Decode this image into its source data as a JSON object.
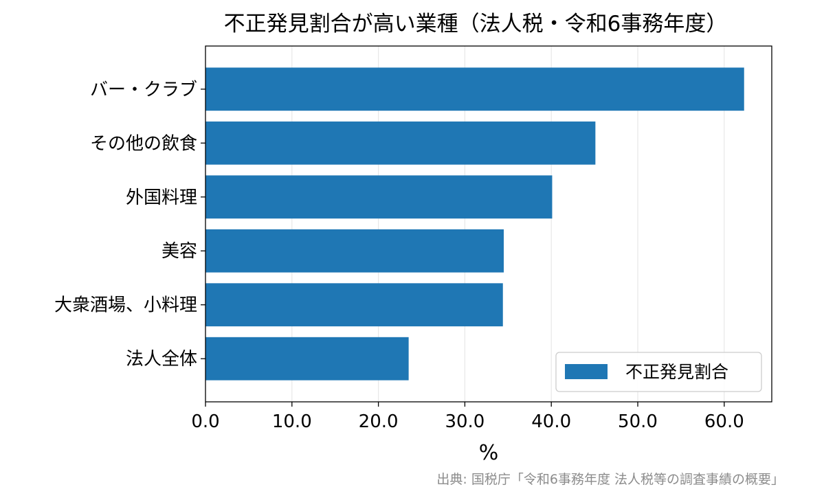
{
  "chart_data": {
    "type": "bar",
    "orientation": "horizontal",
    "title": "不正発見割合が高い業種（法人税・令和6事務年度）",
    "xlabel": "%",
    "ylabel": "",
    "categories": [
      "バー・クラブ",
      "その他の飲食",
      "外国料理",
      "美容",
      "大衆酒場、小料理",
      "法人全体"
    ],
    "series": [
      {
        "name": "不正発見割合",
        "values": [
          62.3,
          45.1,
          40.1,
          34.5,
          34.4,
          23.5
        ],
        "color": "#1f77b4"
      }
    ],
    "xlim": [
      0,
      65.5
    ],
    "xticks": [
      0,
      10,
      20,
      30,
      40,
      50,
      60
    ],
    "xtick_labels": [
      "0.0",
      "10.0",
      "20.0",
      "30.0",
      "40.0",
      "50.0",
      "60.0"
    ],
    "grid": "vertical",
    "legend_position": "lower-right",
    "source": "出典: 国税庁「令和6事務年度 法人税等の調査事績の概要」"
  }
}
